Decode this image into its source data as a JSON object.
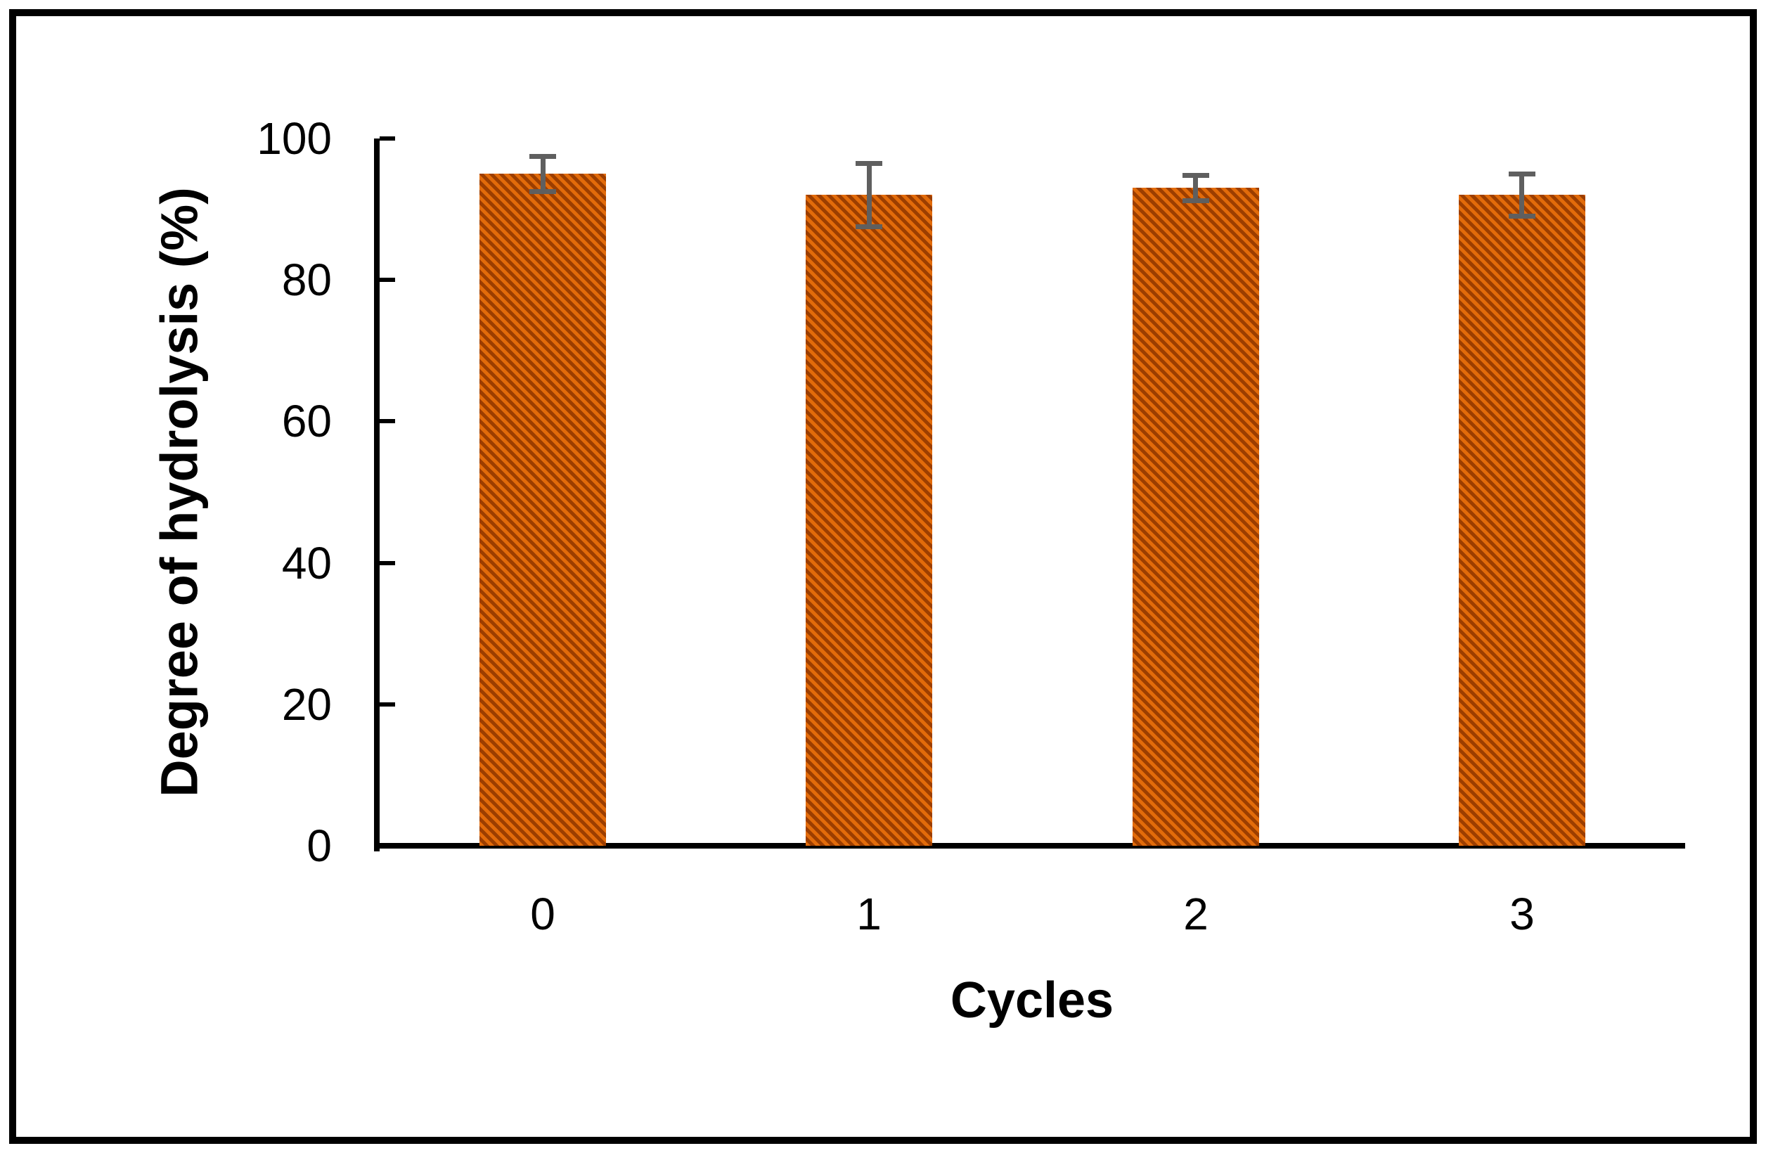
{
  "chart_data": {
    "type": "bar",
    "title": "",
    "categories": [
      "0",
      "1",
      "2",
      "3"
    ],
    "series": [
      {
        "name": "Degree of hydrolysis",
        "values": [
          95,
          92,
          93,
          92
        ],
        "errors": [
          2.5,
          4.5,
          1.8,
          3.0
        ]
      }
    ],
    "xlabel": "Cycles",
    "ylabel": "Degree of hydrolysis (%)",
    "ylim": [
      0,
      100
    ],
    "yticks": [
      0,
      20,
      40,
      60,
      80,
      100
    ],
    "grid": false,
    "legend": "none",
    "colors": {
      "bar_fill": "#E26B0A",
      "bar_hatch": "#9C3E00",
      "error_bar": "#5F5F5F",
      "axis": "#000000",
      "text": "#000000",
      "frame_border": "#000000",
      "background": "#FFFFFF"
    },
    "style": {
      "hatch_pattern": "diagonal-stripes"
    }
  }
}
